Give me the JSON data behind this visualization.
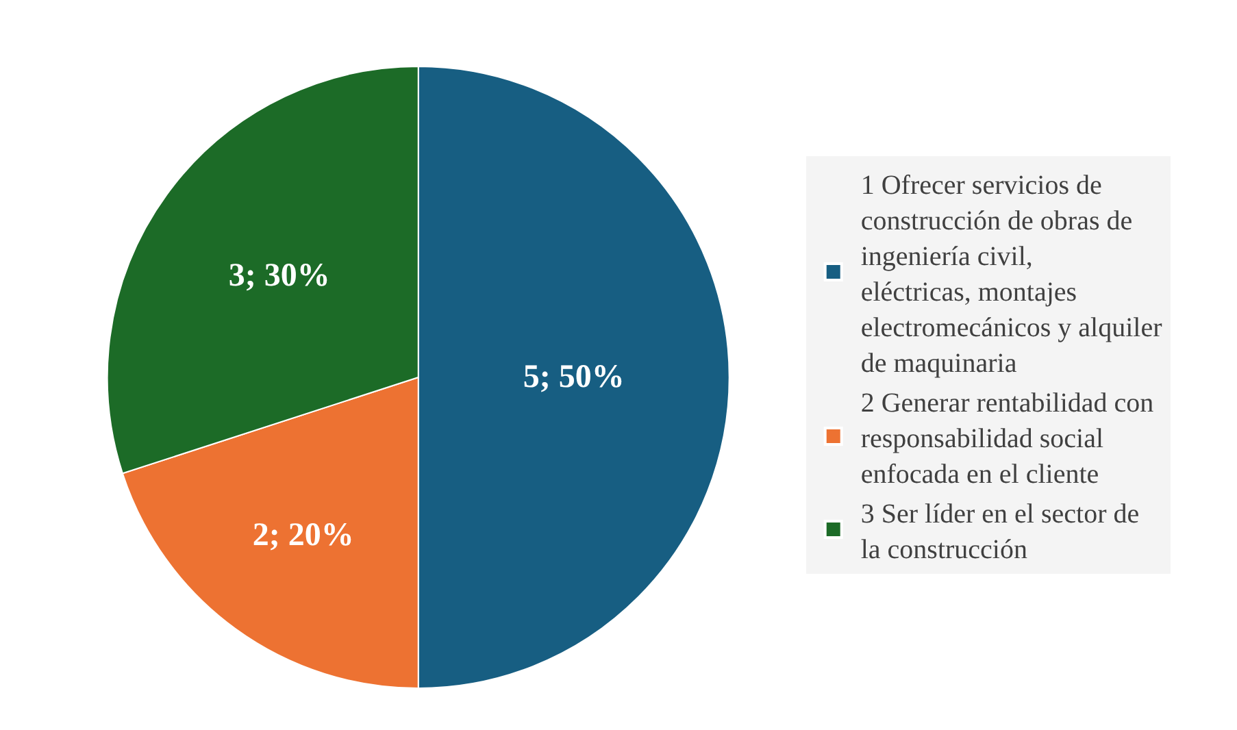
{
  "chart_data": {
    "type": "pie",
    "categories": [
      "1 Ofrecer servicios de construcción de obras de ingeniería civil, eléctricas, montajes electromecánicos y alquiler de maquinaria",
      "2 Generar rentabilidad con responsabilidad social enfocada en el cliente",
      "3 Ser líder en el sector de la construcción"
    ],
    "values": [
      5,
      2,
      3
    ],
    "colors": [
      "#175e82",
      "#ed7232",
      "#1c6b27"
    ],
    "value_labels": [
      "5; 50%",
      "2; 20%",
      "3; 30%"
    ],
    "legend": "right"
  }
}
